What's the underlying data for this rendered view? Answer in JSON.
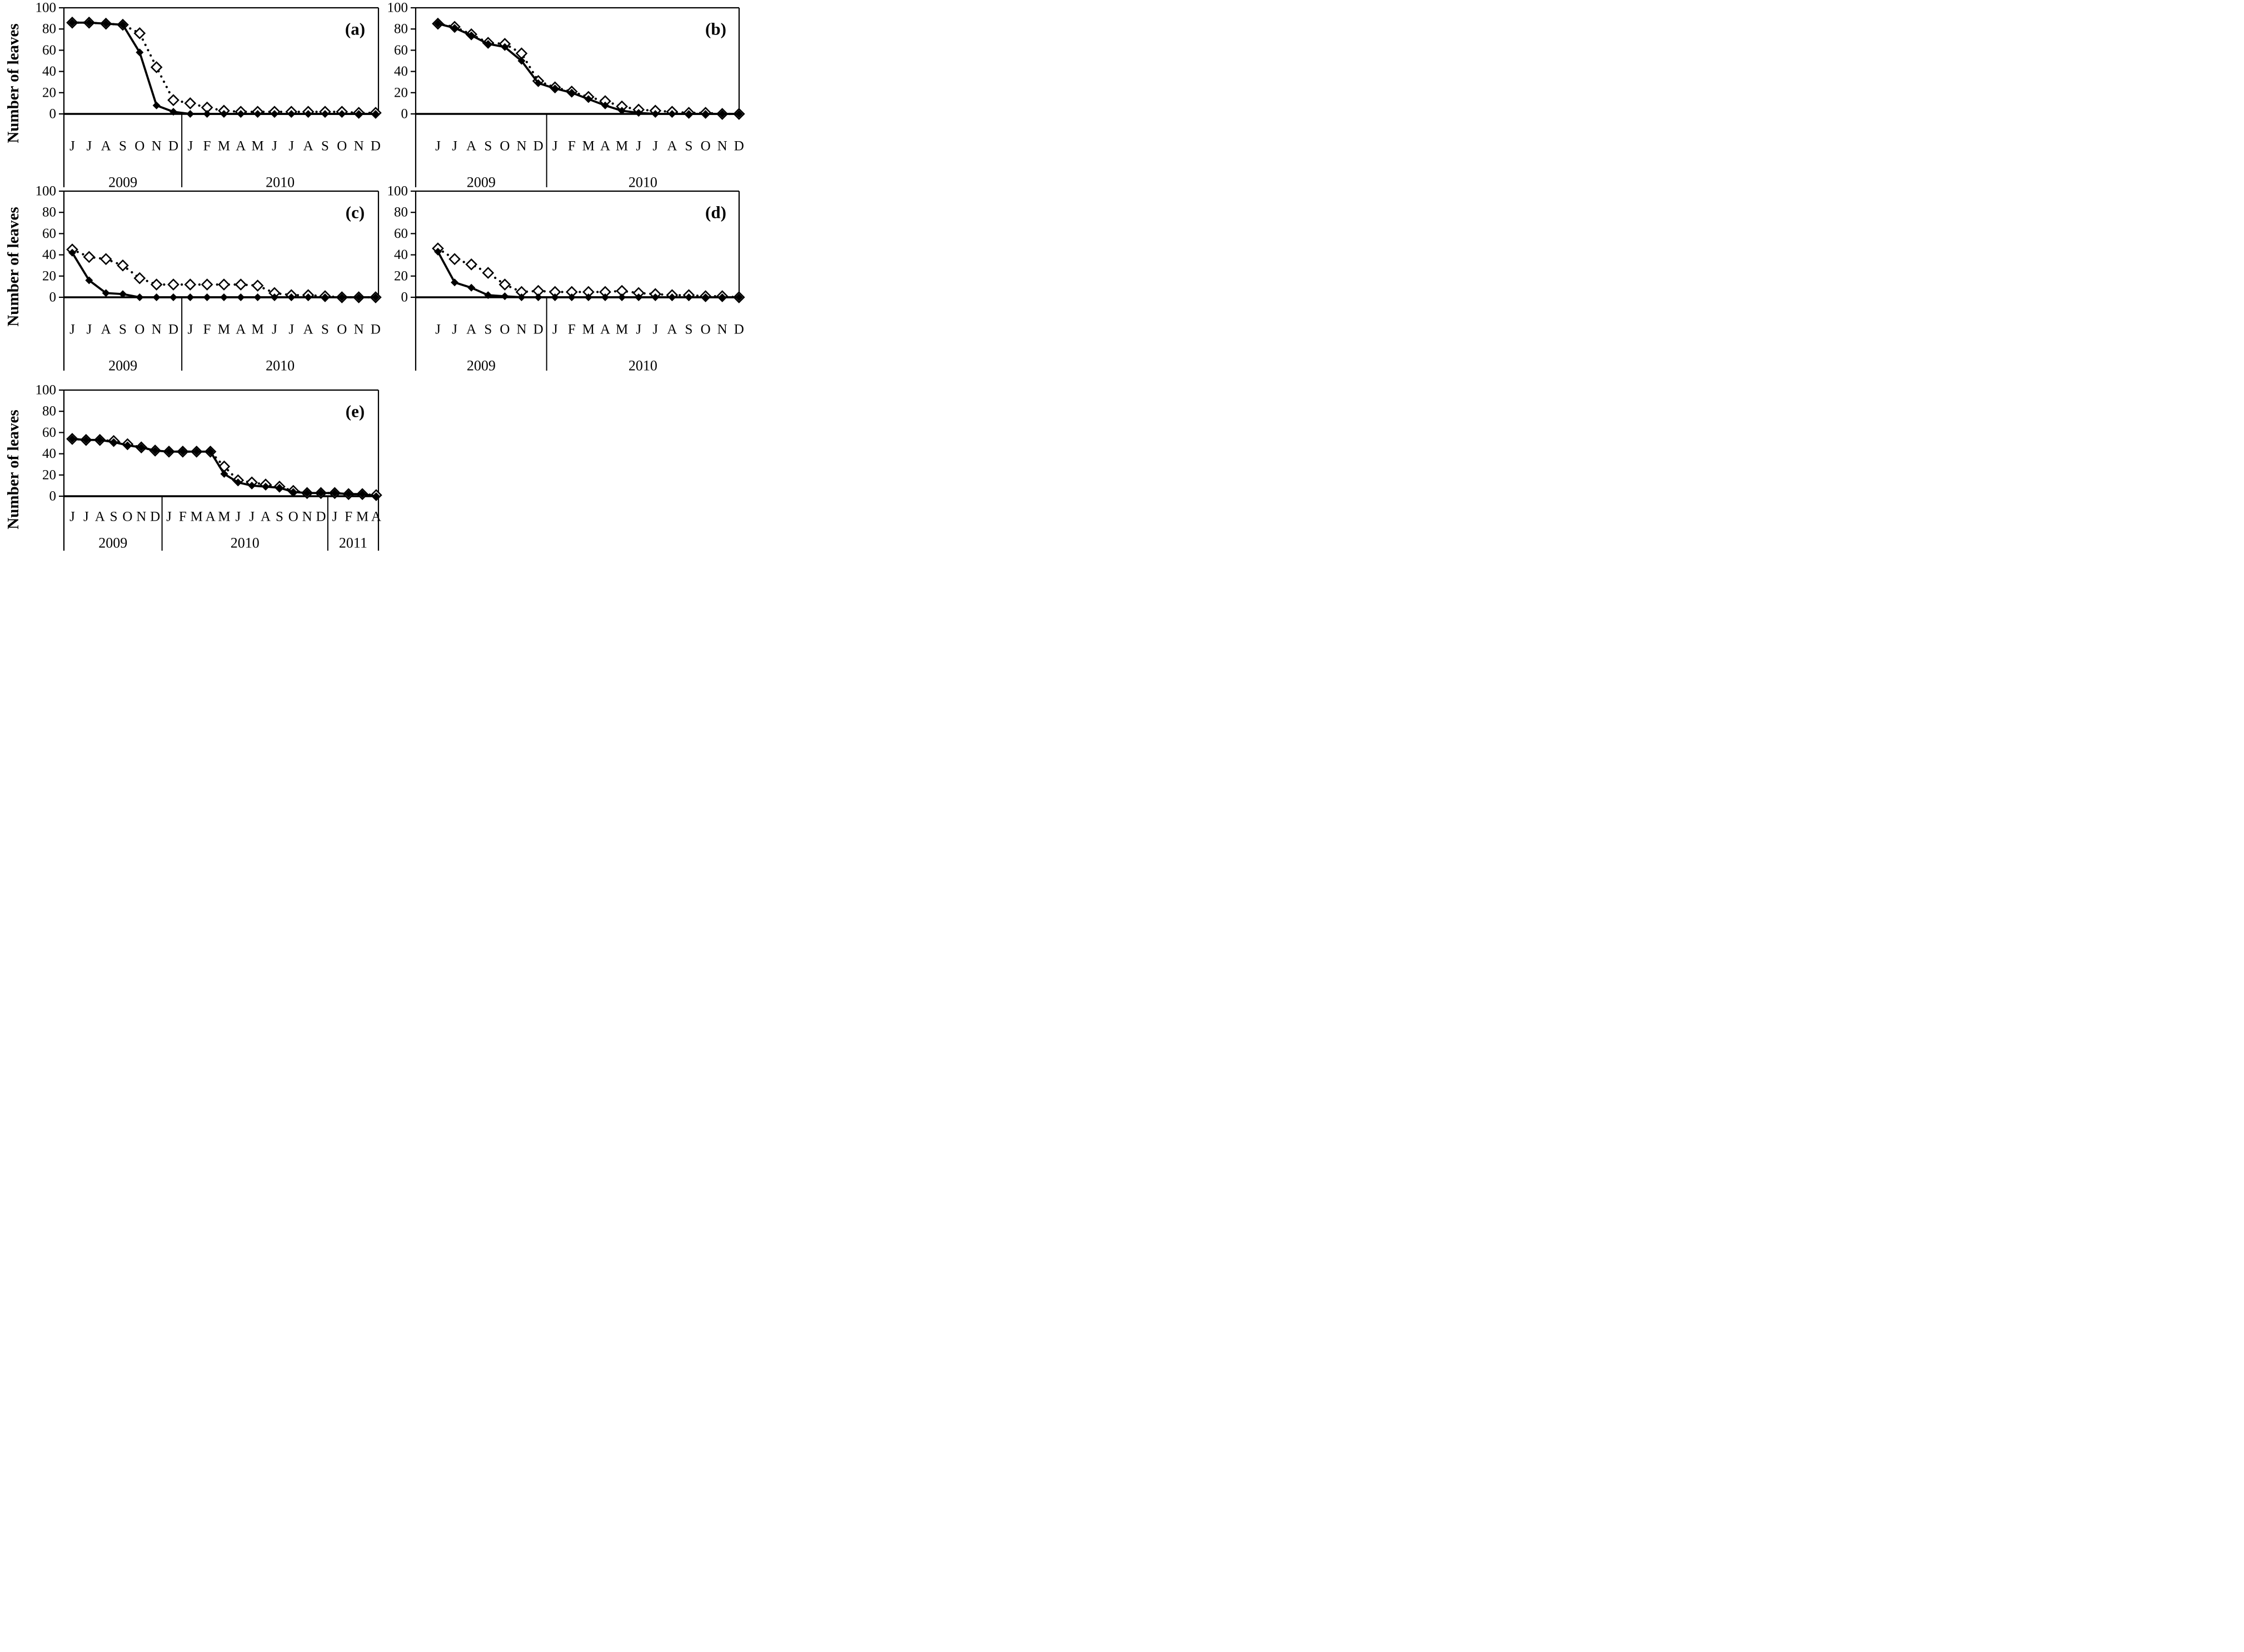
{
  "figure": {
    "y_axis_title": "Number of leaves",
    "y_ticks": [
      0,
      20,
      40,
      60,
      80,
      100
    ],
    "ink_color": "#000000",
    "background_color": "#ffffff"
  },
  "chart_data": [
    {
      "type": "line",
      "panel_label": "(a)",
      "ylabel": "Number of leaves",
      "ylim": [
        0,
        100
      ],
      "grid": false,
      "legend": null,
      "months": [
        "J",
        "J",
        "A",
        "S",
        "O",
        "N",
        "D",
        "J",
        "F",
        "M",
        "A",
        "M",
        "J",
        "J",
        "A",
        "S",
        "O",
        "N",
        "D"
      ],
      "years": [
        {
          "label": "2009",
          "month_count": 7
        },
        {
          "label": "2010",
          "month_count": 12
        }
      ],
      "series": [
        {
          "name": "solid line, filled markers",
          "line_style": "solid",
          "marker": "filled-diamond",
          "values": [
            86,
            86,
            85,
            84,
            58,
            8,
            2,
            0,
            0,
            0,
            0,
            0,
            0,
            0,
            0,
            0,
            0,
            0,
            0
          ]
        },
        {
          "name": "dotted line, open diamond markers",
          "line_style": "dotted",
          "marker": "open-diamond",
          "values": [
            86,
            86,
            85,
            84,
            76,
            44,
            13,
            10,
            6,
            3,
            2,
            2,
            2,
            2,
            2,
            2,
            2,
            1,
            1
          ]
        }
      ]
    },
    {
      "type": "line",
      "panel_label": "(b)",
      "ylabel": null,
      "ylim": [
        0,
        100
      ],
      "grid": false,
      "legend": null,
      "months": [
        "J",
        "J",
        "A",
        "S",
        "O",
        "N",
        "D",
        "J",
        "F",
        "M",
        "A",
        "M",
        "J",
        "J",
        "A",
        "S",
        "O",
        "N",
        "D"
      ],
      "years": [
        {
          "label": "2009",
          "month_count": 7
        },
        {
          "label": "2010",
          "month_count": 12
        }
      ],
      "series": [
        {
          "name": "solid line, filled markers",
          "line_style": "solid",
          "marker": "filled-diamond",
          "values": [
            85,
            81,
            74,
            66,
            63,
            50,
            29,
            24,
            20,
            14,
            8,
            3,
            1,
            0,
            0,
            0,
            0,
            0,
            0
          ]
        },
        {
          "name": "dotted line, open diamond markers",
          "line_style": "dotted",
          "marker": "open-diamond",
          "values": [
            85,
            82,
            75,
            67,
            66,
            57,
            31,
            25,
            21,
            16,
            12,
            7,
            4,
            3,
            2,
            1,
            1,
            0,
            0
          ]
        }
      ]
    },
    {
      "type": "line",
      "panel_label": "(c)",
      "ylabel": "Number of leaves",
      "ylim": [
        0,
        100
      ],
      "grid": false,
      "legend": null,
      "months": [
        "J",
        "J",
        "A",
        "S",
        "O",
        "N",
        "D",
        "J",
        "F",
        "M",
        "A",
        "M",
        "J",
        "J",
        "A",
        "S",
        "O",
        "N",
        "D"
      ],
      "years": [
        {
          "label": "2009",
          "month_count": 7
        },
        {
          "label": "2010",
          "month_count": 12
        }
      ],
      "series": [
        {
          "name": "solid line, filled markers",
          "line_style": "solid",
          "marker": "filled-diamond",
          "values": [
            42,
            16,
            4,
            3,
            0,
            0,
            0,
            0,
            0,
            0,
            0,
            0,
            0,
            0,
            0,
            0,
            0,
            0,
            0
          ]
        },
        {
          "name": "dotted line, open diamond markers",
          "line_style": "dotted",
          "marker": "open-diamond",
          "values": [
            45,
            38,
            36,
            30,
            18,
            12,
            12,
            12,
            12,
            12,
            12,
            11,
            4,
            2,
            2,
            1,
            0,
            0,
            0
          ]
        }
      ]
    },
    {
      "type": "line",
      "panel_label": "(d)",
      "ylabel": null,
      "ylim": [
        0,
        100
      ],
      "grid": false,
      "legend": null,
      "months": [
        "J",
        "J",
        "A",
        "S",
        "O",
        "N",
        "D",
        "J",
        "F",
        "M",
        "A",
        "M",
        "J",
        "J",
        "A",
        "S",
        "O",
        "N",
        "D"
      ],
      "years": [
        {
          "label": "2009",
          "month_count": 7
        },
        {
          "label": "2010",
          "month_count": 12
        }
      ],
      "series": [
        {
          "name": "solid line, filled markers",
          "line_style": "solid",
          "marker": "filled-diamond",
          "values": [
            43,
            14,
            9,
            2,
            1,
            0,
            0,
            0,
            0,
            0,
            0,
            0,
            0,
            0,
            0,
            0,
            0,
            0,
            0
          ]
        },
        {
          "name": "dotted line, open diamond markers",
          "line_style": "dotted",
          "marker": "open-diamond",
          "values": [
            46,
            36,
            31,
            23,
            12,
            5,
            6,
            5,
            5,
            5,
            5,
            6,
            4,
            3,
            2,
            2,
            1,
            1,
            0
          ]
        }
      ]
    },
    {
      "type": "line",
      "panel_label": "(e)",
      "ylabel": "Number of leaves",
      "ylim": [
        0,
        100
      ],
      "grid": false,
      "legend": null,
      "months": [
        "J",
        "J",
        "A",
        "S",
        "O",
        "N",
        "D",
        "J",
        "F",
        "M",
        "A",
        "M",
        "J",
        "J",
        "A",
        "S",
        "O",
        "N",
        "D",
        "J",
        "F",
        "M",
        "A"
      ],
      "years": [
        {
          "label": "2009",
          "month_count": 7
        },
        {
          "label": "2010",
          "month_count": 12
        },
        {
          "label": "2011",
          "month_count": 4
        }
      ],
      "series": [
        {
          "name": "solid line, filled markers",
          "line_style": "solid",
          "marker": "filled-diamond",
          "values": [
            54,
            53,
            53,
            51,
            48,
            46,
            43,
            42,
            42,
            42,
            42,
            21,
            13,
            10,
            9,
            8,
            4,
            3,
            3,
            3,
            2,
            2,
            0
          ]
        },
        {
          "name": "dotted line, open diamond markers",
          "line_style": "dotted",
          "marker": "open-diamond",
          "values": [
            54,
            53,
            53,
            52,
            49,
            46,
            43,
            42,
            42,
            42,
            42,
            28,
            15,
            13,
            11,
            9,
            5,
            3,
            3,
            3,
            2,
            2,
            1
          ]
        }
      ]
    }
  ]
}
